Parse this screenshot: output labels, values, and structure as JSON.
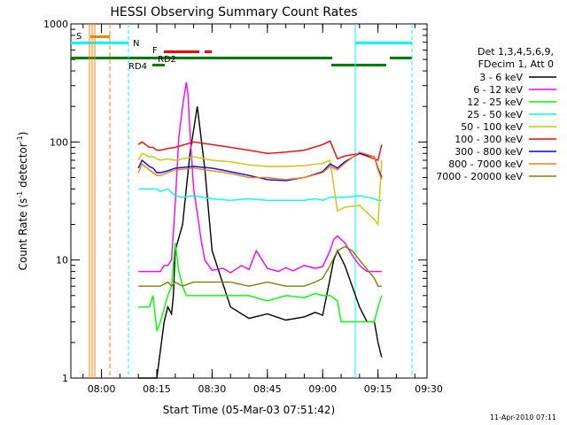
{
  "chart_data": {
    "type": "line",
    "title": "HESSI Observing Summary Count Rates",
    "xlabel": "Start Time (05-Mar-03 07:51:42)",
    "ylabel_main": "Count Rate (s",
    "ylabel_sup1": "-1",
    "ylabel_mid": " detector",
    "ylabel_sup2": "-1",
    "ylabel_end": ")",
    "y_scale": "log",
    "ylim": [
      1,
      1000
    ],
    "xlim_min": [
      -8.3,
      88.3
    ],
    "x_ticks": [
      {
        "label": "08:00",
        "min": 0
      },
      {
        "label": "08:15",
        "min": 15
      },
      {
        "label": "08:30",
        "min": 30
      },
      {
        "label": "08:45",
        "min": 45
      },
      {
        "label": "09:00",
        "min": 60
      },
      {
        "label": "09:15",
        "min": 75
      },
      {
        "label": "09:30",
        "min": 90
      }
    ],
    "y_ticks": [
      {
        "label": "1",
        "value": 1
      },
      {
        "label": "10",
        "value": 10
      },
      {
        "label": "100",
        "value": 100
      },
      {
        "label": "1000",
        "value": 1000
      }
    ],
    "legend_header": [
      "Det 1,3,4,5,6,9,",
      "FDecim 1, Att 0"
    ],
    "legend_placement": "right",
    "footer_date": "11-Apr-2010 07:11",
    "series": [
      {
        "name": "3 - 6 keV",
        "color": "#000000",
        "x": [
          10,
          12,
          14,
          15,
          17,
          18,
          19,
          19.5,
          20,
          22,
          24,
          26,
          28,
          30,
          35,
          40,
          45,
          50,
          55,
          58,
          60,
          62,
          63,
          64,
          66,
          70,
          72,
          74,
          75,
          76
        ],
        "y": [
          1,
          1,
          1,
          1,
          3,
          4,
          3.5,
          5,
          12,
          20,
          80,
          200,
          60,
          12,
          4,
          3.2,
          3.5,
          3.1,
          3.3,
          3.6,
          3.4,
          7,
          10,
          12,
          9,
          4,
          3,
          3,
          2,
          1.5
        ]
      },
      {
        "name": "6 - 12 keV",
        "color": "#ff00ff",
        "x": [
          10,
          12,
          14,
          15,
          16,
          17,
          18,
          19,
          20,
          21,
          22,
          23,
          23.5,
          24,
          25,
          26,
          27,
          28,
          30,
          33,
          35,
          38,
          40,
          42,
          45,
          48,
          50,
          52,
          55,
          58,
          60,
          62,
          63,
          64,
          66,
          68,
          70,
          72,
          74,
          75,
          76
        ],
        "y": [
          8,
          8,
          8,
          8,
          8,
          9,
          9,
          10,
          30,
          110,
          200,
          320,
          250,
          120,
          40,
          25,
          15,
          10,
          8.2,
          8.5,
          7.8,
          9,
          8.3,
          12,
          8.5,
          8,
          8.6,
          8.1,
          9,
          8.5,
          8.8,
          12,
          15,
          16,
          14,
          11,
          9,
          8,
          8,
          8,
          8
        ]
      },
      {
        "name": "12 - 25 keV",
        "color": "#00ff00",
        "x": [
          10,
          13,
          14,
          15,
          16,
          18,
          19,
          20,
          21,
          22,
          23,
          24,
          26,
          28,
          30,
          35,
          40,
          45,
          50,
          55,
          58,
          60,
          62,
          64,
          65,
          66,
          70,
          74,
          75,
          76
        ],
        "y": [
          4,
          4,
          5,
          2.5,
          3,
          5,
          6,
          14,
          8,
          6,
          5,
          5,
          5,
          5,
          5,
          5,
          5,
          4.5,
          5,
          4.8,
          5.2,
          5,
          5,
          4.5,
          3,
          3,
          3,
          3,
          4,
          5
        ]
      },
      {
        "name": "25 - 50 keV",
        "color": "#00ffff",
        "x": [
          10,
          13,
          14,
          15,
          16,
          18,
          20,
          22,
          25,
          30,
          35,
          40,
          45,
          50,
          55,
          58,
          60,
          62,
          63,
          64,
          66,
          70,
          74,
          75,
          76
        ],
        "y": [
          40,
          40,
          40,
          40,
          38,
          40,
          35,
          34,
          35,
          33,
          32,
          33,
          32,
          32,
          32,
          33,
          32,
          34,
          34,
          34,
          34,
          35,
          33,
          32,
          32
        ]
      },
      {
        "name": "50 - 100 keV",
        "color": "#c8c800",
        "x": [
          10,
          11,
          13,
          14,
          15,
          16,
          18,
          20,
          25,
          30,
          35,
          40,
          45,
          50,
          55,
          60,
          62,
          64,
          66,
          70,
          74,
          75,
          76
        ],
        "y": [
          70,
          80,
          75,
          75,
          72,
          70,
          72,
          70,
          75,
          70,
          68,
          64,
          62,
          62,
          63,
          66,
          70,
          26,
          28,
          29,
          22,
          20,
          70
        ]
      },
      {
        "name": "100 - 300 keV",
        "color": "#ff0000",
        "x": [
          10,
          11,
          13,
          14,
          15,
          16,
          18,
          20,
          25,
          30,
          35,
          40,
          45,
          50,
          55,
          60,
          62,
          64,
          66,
          70,
          74,
          75,
          76
        ],
        "y": [
          95,
          100,
          90,
          90,
          85,
          85,
          88,
          90,
          100,
          95,
          90,
          85,
          80,
          82,
          85,
          95,
          102,
          72,
          76,
          80,
          72,
          70,
          95
        ]
      },
      {
        "name": "300 - 800 keV",
        "color": "#0000ff",
        "x": [
          10,
          11,
          13,
          14,
          15,
          16,
          18,
          20,
          25,
          30,
          35,
          40,
          45,
          50,
          55,
          60,
          62,
          64,
          66,
          70,
          74,
          75,
          76
        ],
        "y": [
          60,
          70,
          62,
          60,
          55,
          55,
          57,
          60,
          62,
          60,
          56,
          52,
          48,
          47,
          50,
          56,
          65,
          60,
          68,
          80,
          75,
          60,
          50
        ]
      },
      {
        "name": "800 - 7000 keV",
        "color": "#ff8000",
        "x": [
          10,
          11,
          13,
          14,
          15,
          16,
          18,
          20,
          25,
          30,
          35,
          40,
          45,
          50,
          55,
          60,
          62,
          64,
          66,
          70,
          74,
          75,
          76
        ],
        "y": [
          55,
          65,
          58,
          55,
          52,
          52,
          55,
          58,
          60,
          57,
          54,
          50,
          50,
          48,
          50,
          55,
          62,
          58,
          66,
          82,
          75,
          58,
          48
        ]
      },
      {
        "name": "7000 - 20000 keV",
        "color": "#808000",
        "x": [
          10,
          13,
          14,
          15,
          16,
          18,
          19,
          20,
          22,
          25,
          30,
          35,
          40,
          45,
          50,
          55,
          58,
          60,
          62,
          64,
          66,
          68,
          70,
          74,
          75,
          76
        ],
        "y": [
          6,
          6,
          6,
          6,
          6,
          6.5,
          6,
          6.5,
          6,
          6.5,
          6.5,
          6.5,
          6,
          6.5,
          6,
          6,
          6.5,
          7,
          9,
          12,
          13,
          12,
          10,
          7,
          6,
          6
        ]
      }
    ],
    "annotations": [
      {
        "label": "S",
        "color": "#ff8000"
      },
      {
        "label": "N",
        "color": "#00ffff"
      },
      {
        "label": "F",
        "color": "#ff0000"
      },
      {
        "label": "RD2",
        "color": "#008000"
      },
      {
        "label": "RD4",
        "color": "#008000"
      }
    ]
  }
}
